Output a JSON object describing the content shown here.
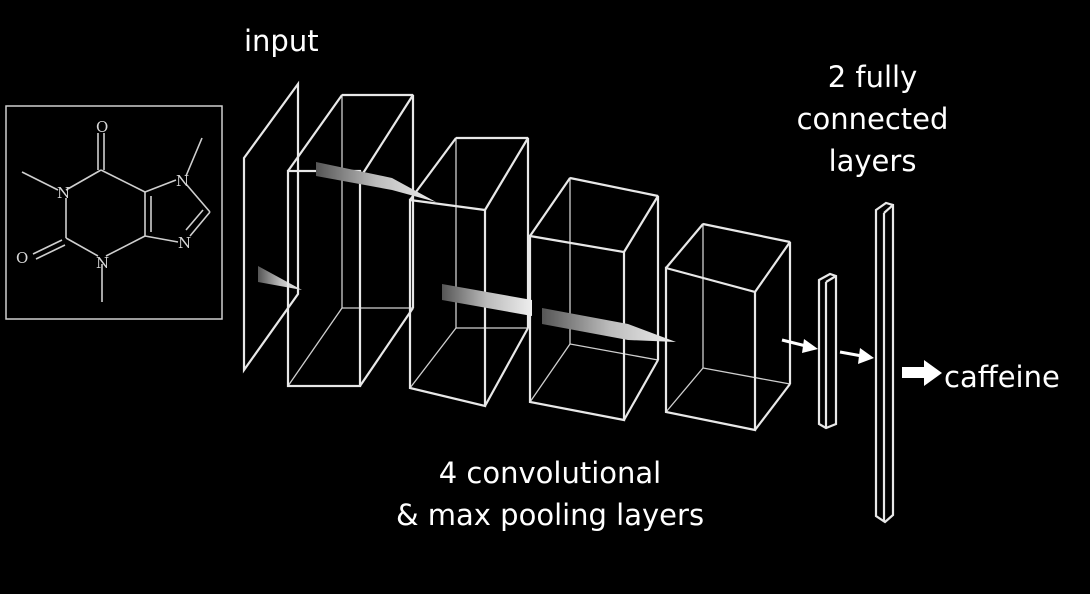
{
  "labels": {
    "input": "input",
    "fc_line1": "2 fully",
    "fc_line2": "connected",
    "fc_line3": "layers",
    "conv_line1": "4 convolutional",
    "conv_line2": "& max pooling layers",
    "output": "caffeine"
  },
  "molecule": {
    "atoms": [
      "O",
      "N",
      "N",
      "O",
      "N",
      "N"
    ]
  },
  "colors": {
    "background": "#000000",
    "text": "#ffffff",
    "edge": "#e8e8e8",
    "molecule": "#cfcfcf"
  }
}
